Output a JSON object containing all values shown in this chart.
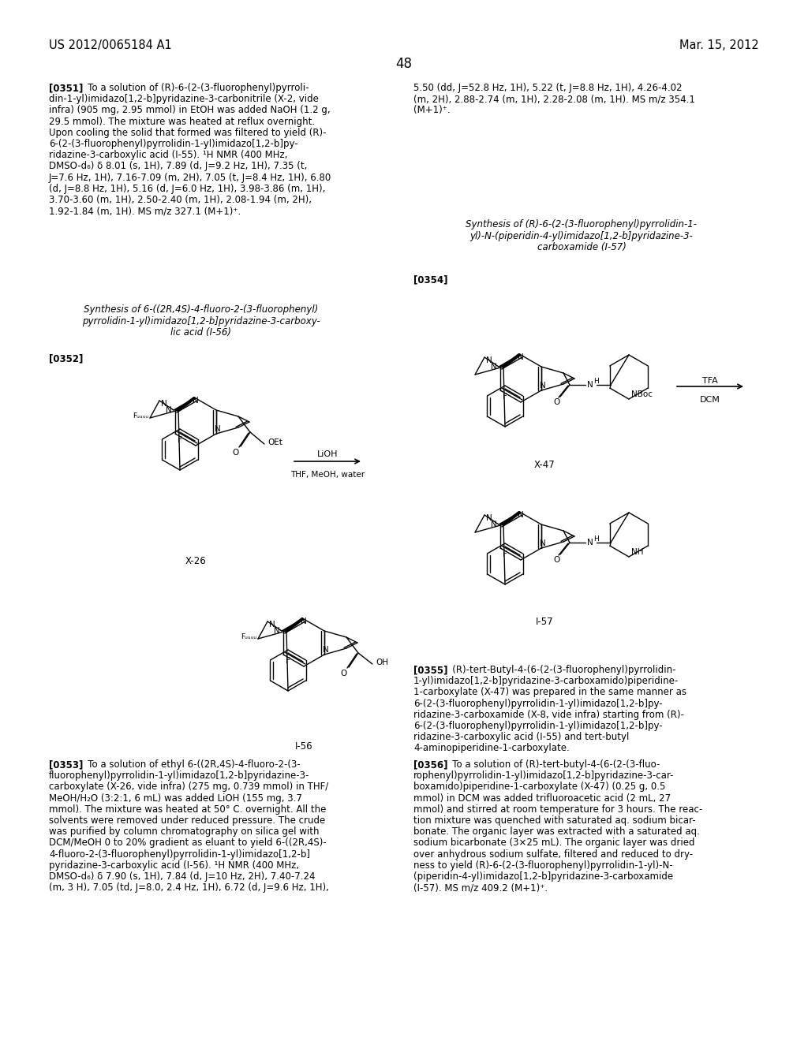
{
  "page_number": "48",
  "header_left": "US 2012/0065184 A1",
  "header_right": "Mar. 15, 2012",
  "bg": "#ffffff",
  "fc": "#000000"
}
